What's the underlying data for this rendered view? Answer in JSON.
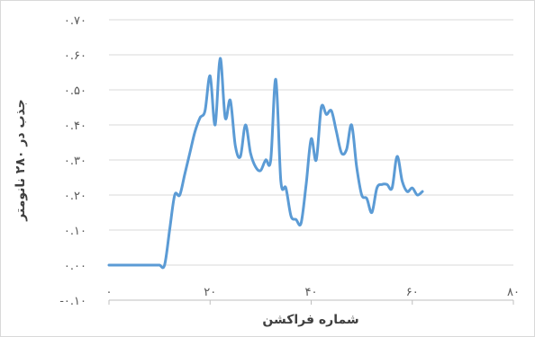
{
  "chart_data": {
    "type": "line",
    "xlabel": "شماره فراکشن",
    "ylabel": "جذب در ۲۸۰ نانومتر",
    "xlim": [
      0,
      80
    ],
    "ylim": [
      -0.1,
      0.7
    ],
    "x_ticks": [
      0,
      20,
      40,
      60,
      80
    ],
    "x_tick_labels": [
      "۰",
      "۲۰",
      "۴۰",
      "۶۰",
      "۸۰"
    ],
    "y_ticks": [
      -0.1,
      0.0,
      0.1,
      0.2,
      0.3,
      0.4,
      0.5,
      0.6,
      0.7
    ],
    "y_tick_labels": [
      "-۰.۱۰",
      "۰.۰۰",
      "۰.۱۰",
      "۰.۲۰",
      "۰.۳۰",
      "۰.۴۰",
      "۰.۵۰",
      "۰.۶۰",
      "۰.۷۰"
    ],
    "grid": "horizontal",
    "legend": "none",
    "series": [
      {
        "color": "#5b9bd5",
        "x": [
          0,
          2,
          4,
          6,
          8,
          9,
          10,
          11,
          12,
          13,
          14,
          15,
          16,
          17,
          18,
          19,
          20,
          21,
          22,
          23,
          24,
          25,
          26,
          27,
          28,
          29,
          30,
          31,
          32,
          33,
          34,
          35,
          36,
          37,
          38,
          39,
          40,
          41,
          42,
          43,
          44,
          45,
          46,
          47,
          48,
          49,
          50,
          51,
          52,
          53,
          54,
          55,
          56,
          57,
          58,
          59,
          60,
          61,
          62,
          63,
          64
        ],
        "y": [
          0.0,
          0.0,
          0.0,
          0.0,
          0.0,
          0.0,
          0.0,
          0.0,
          0.1,
          0.2,
          0.2,
          0.26,
          0.32,
          0.38,
          0.42,
          0.44,
          0.54,
          0.4,
          0.59,
          0.42,
          0.47,
          0.34,
          0.31,
          0.4,
          0.32,
          0.28,
          0.27,
          0.3,
          0.3,
          0.53,
          0.24,
          0.22,
          0.14,
          0.13,
          0.12,
          0.23,
          0.36,
          0.3,
          0.45,
          0.43,
          0.44,
          0.38,
          0.32,
          0.33,
          0.4,
          0.28,
          0.2,
          0.19,
          0.15,
          0.22,
          0.23,
          0.23,
          0.22,
          0.31,
          0.24,
          0.21,
          0.22,
          0.2,
          0.21,
          null,
          null
        ]
      }
    ]
  }
}
